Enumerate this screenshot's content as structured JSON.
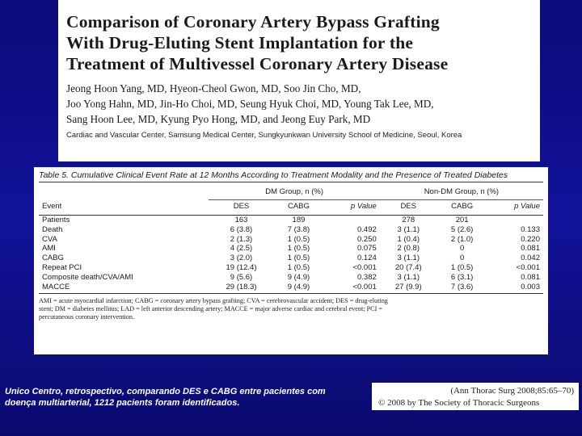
{
  "paper": {
    "title_lines": [
      "Comparison of Coronary Artery Bypass Grafting",
      "With Drug-Eluting Stent Implantation for the",
      "Treatment of Multivessel Coronary Artery Disease"
    ],
    "author_lines": [
      "Jeong Hoon Yang, MD, Hyeon-Cheol Gwon, MD, Soo Jin Cho, MD,",
      "Joo Yong Hahn, MD, Jin-Ho Choi, MD, Seung Hyuk Choi, MD, Young Tak Lee, MD,",
      "Sang Hoon Lee, MD, Kyung Pyo Hong, MD, and Jeong Euy Park, MD"
    ],
    "affiliation": "Cardiac and Vascular Center, Samsung Medical Center, Sungkyunkwan University School of Medicine, Seoul, Korea"
  },
  "table": {
    "caption": "Table 5. Cumulative Clinical Event Rate at 12 Months According to Treatment Modality and the Presence of Treated Diabetes",
    "group_dm": "DM Group, n (%)",
    "group_nondm": "Non-DM Group, n (%)",
    "headers": [
      "Event",
      "DES",
      "CABG",
      "p Value",
      "DES",
      "CABG",
      "p Value"
    ],
    "rows": [
      [
        "Patients",
        "163",
        "189",
        "",
        "278",
        "201",
        ""
      ],
      [
        "Death",
        "6 (3.8)",
        "7 (3.8)",
        "0.492",
        "3 (1.1)",
        "5 (2.6)",
        "0.133"
      ],
      [
        "CVA",
        "2 (1.3)",
        "1 (0.5)",
        "0.250",
        "1 (0.4)",
        "2 (1.0)",
        "0.220"
      ],
      [
        "AMI",
        "4 (2.5)",
        "1 (0.5)",
        "0.075",
        "2 (0.8)",
        "0",
        "0.081"
      ],
      [
        "CABG",
        "3 (2.0)",
        "1 (0.5)",
        "0.124",
        "3 (1.1)",
        "0",
        "0.042"
      ],
      [
        "Repeat PCI",
        "19 (12.4)",
        "1 (0.5)",
        "<0.001",
        "20 (7.4)",
        "1 (0.5)",
        "<0.001"
      ],
      [
        "Composite death/CVA/AMI",
        "9 (5.6)",
        "9 (4.9)",
        "0.382",
        "3 (1.1)",
        "6 (3.1)",
        "0.081"
      ],
      [
        "MACCE",
        "29 (18.3)",
        "9 (4.9)",
        "<0.001",
        "27 (9.9)",
        "7 (3.6)",
        "0.003"
      ]
    ],
    "footnote_lines": [
      "AMI = acute myocardial infarction;   CABG = coronary artery bypass grafting;   CVA = cerebrovascular accident;   DES = drug-eluting",
      "stent;   DM = diabetes mellitus;   LAD = left anterior descending artery;   MACCE = major adverse cardiac and cerebral event;   PCI =",
      "percutaneous coronary intervention."
    ]
  },
  "slide": {
    "caption_lines": [
      "Unico Centro, retrospectivo, comparando DES e CABG entre pacientes com",
      "doença multiarterial, 1212 pacients foram identificados."
    ],
    "citation_line1": "(Ann Thorac Surg 2008;85:65–70)",
    "citation_line2": "© 2008 by The Society of Thoracic Surgeons"
  }
}
